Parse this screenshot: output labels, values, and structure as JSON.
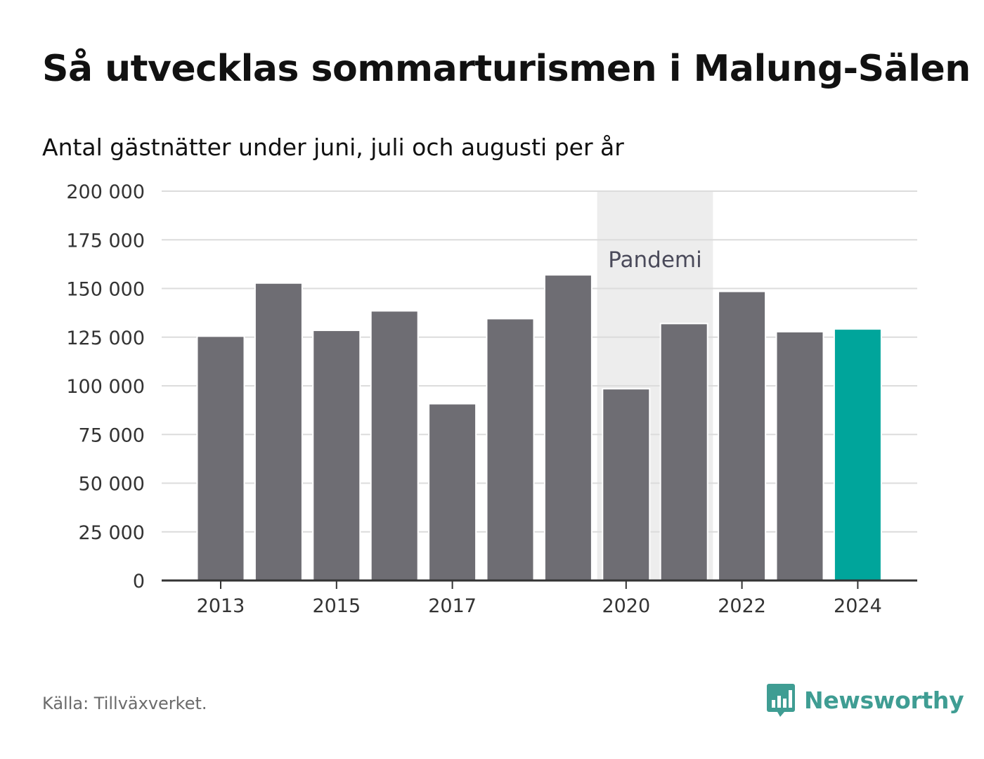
{
  "header": {
    "title": "Så utvecklas sommarturismen i Malung-Sälen",
    "subtitle": "Antal gästnätter under juni, juli och augusti per år"
  },
  "chart_data": {
    "type": "bar",
    "categories": [
      "2013",
      "2014",
      "2015",
      "2016",
      "2017",
      "2018",
      "2019",
      "2020",
      "2021",
      "2022",
      "2023",
      "2024"
    ],
    "values": [
      125500,
      152800,
      128500,
      138500,
      90800,
      134500,
      157000,
      98500,
      132000,
      148500,
      127800,
      129200
    ],
    "x_tick_labels": [
      "2013",
      "2015",
      "2017",
      "2020",
      "2022",
      "2024"
    ],
    "y_ticks": [
      0,
      25000,
      50000,
      75000,
      100000,
      125000,
      150000,
      175000,
      200000
    ],
    "y_tick_labels": [
      "0",
      "25 000",
      "50 000",
      "75 000",
      "100 000",
      "125 000",
      "150 000",
      "175 000",
      "200 000"
    ],
    "ylim": [
      0,
      200000
    ],
    "grid": true,
    "highlight_category": "2024",
    "annotation": {
      "label": "Pandemi",
      "from": "2020",
      "to": "2021"
    },
    "colors": {
      "bar": "#6e6d73",
      "highlight": "#00a59b",
      "band": "#ededed",
      "grid": "#dcdcdc",
      "axis": "#333333",
      "tick_text": "#333333",
      "annotation_text": "#4a4a5a"
    }
  },
  "footer": {
    "source": "Källa: Tillväxverket.",
    "brand": "Newsworthy",
    "brand_color": "#3f9d93",
    "brand_icon": "bar-chart-speech-bubble-icon"
  }
}
